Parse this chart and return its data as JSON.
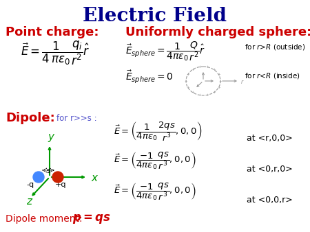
{
  "title": "Electric Field",
  "title_color": "#00008B",
  "title_fontsize": 20,
  "bg_color": "white",
  "point_charge_label": "Point charge:",
  "point_charge_color": "#CC0000",
  "point_charge_fontsize": 13,
  "point_charge_eq": "$\\vec{E} = \\dfrac{1}{4\\,\\pi\\varepsilon_0}\\dfrac{q_i}{r^2}\\hat{r}$",
  "point_charge_eq_fontsize": 12,
  "sphere_label": "Uniformly charged sphere:",
  "sphere_color": "#CC0000",
  "sphere_fontsize": 13,
  "sphere_eq1": "$\\vec{E}_{sphere} = \\dfrac{1}{4\\pi\\varepsilon_0}\\dfrac{Q}{r^2}\\hat{r}$",
  "sphere_eq1_fontsize": 10,
  "sphere_note1": "for $r$>$R$ (outside)",
  "sphere_eq2": "$\\vec{E}_{sphere} = 0$",
  "sphere_eq2_fontsize": 10,
  "sphere_note2": "for $r$<$R$ (inside)",
  "dipole_label": "Dipole:",
  "dipole_color": "#CC0000",
  "dipole_fontsize": 13,
  "dipole_note": "for r>>s :",
  "dipole_note_color": "#5555CC",
  "dipole_eq1": "$\\vec{E} = \\left(\\dfrac{1}{4\\pi\\varepsilon_0}\\dfrac{2qs}{r^3},0,0\\right)$",
  "dipole_eq1_at": "at <r,0,0>",
  "dipole_eq2": "$\\vec{E} = \\left(\\dfrac{-1}{4\\pi\\varepsilon_0}\\dfrac{qs}{r^3},0,0\\right)$",
  "dipole_eq2_at": "at <0,r,0>",
  "dipole_eq3": "$\\vec{E} = \\left(\\dfrac{-1}{4\\pi\\varepsilon_0}\\dfrac{qs}{r^3},0,0\\right)$",
  "dipole_eq3_at": "at <0,0,r>",
  "dipole_moment_text": "Dipole moment:",
  "dipole_moment_eq": "$\\boldsymbol{p = qs}$",
  "dipole_moment_color": "#CC0000",
  "dipole_eq_fontsize": 9.5,
  "axis_color": "#009900",
  "neg_charge_color": "#4488FF",
  "pos_charge_color": "#CC2200"
}
